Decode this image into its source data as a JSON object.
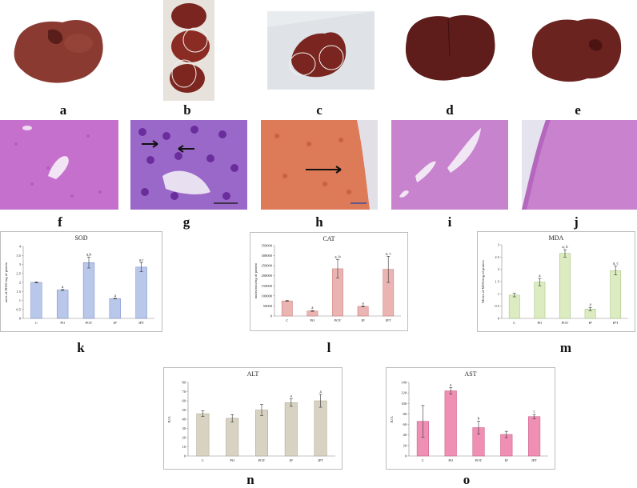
{
  "figure": {
    "panel_labels": [
      "a",
      "b",
      "c",
      "d",
      "e",
      "f",
      "g",
      "h",
      "i",
      "j",
      "k",
      "l",
      "m",
      "n",
      "o"
    ],
    "accents": {
      "liver": "#7a2a24",
      "he_stain": "#c46bc9",
      "sod_bar": "#b9c8ea",
      "cat_bar": "#eab4b2",
      "mda_bar": "#dcebc0",
      "alt_bar": "#d7d2c2",
      "ast_bar": "#ef8fb4"
    }
  },
  "chart_data": [
    {
      "type": "bar",
      "title": "SOD",
      "ylabel": "units of SOD/ mg of protein",
      "categories": [
        "C",
        "PO",
        "POT",
        "IP",
        "IPT"
      ],
      "values": [
        2.0,
        1.58,
        3.1,
        1.1,
        2.85
      ],
      "errors": [
        0.03,
        0.03,
        0.3,
        0.02,
        0.25
      ],
      "sig": [
        "",
        "a",
        "a,b",
        "a",
        "a,c"
      ],
      "ylim": [
        0,
        4
      ],
      "yticks": [
        "0",
        "0.5",
        "1",
        "1.5",
        "2",
        "2.5",
        "3",
        "3.5",
        "4"
      ]
    },
    {
      "type": "bar",
      "title": "CAT",
      "ylabel": "moles/min/mg of protein",
      "categories": [
        "C",
        "PO",
        "POT",
        "IP",
        "IPT"
      ],
      "values": [
        75000,
        25000,
        235000,
        48000,
        232000
      ],
      "errors": [
        2000,
        2000,
        45000,
        2000,
        65000
      ],
      "sig": [
        "",
        "a",
        "a, b",
        "a",
        "a, c"
      ],
      "ylim": [
        0,
        350000
      ],
      "yticks": [
        "0",
        "50000",
        "100000",
        "150000",
        "200000",
        "250000",
        "300000",
        "350000"
      ]
    },
    {
      "type": "bar",
      "title": "MDA",
      "ylabel": "Moles of MDA/mg of protein",
      "categories": [
        "C",
        "PO",
        "POT",
        "IP",
        "IPT"
      ],
      "values": [
        0.95,
        1.48,
        2.65,
        0.38,
        1.95
      ],
      "errors": [
        0.07,
        0.15,
        0.15,
        0.07,
        0.18
      ],
      "sig": [
        "",
        "a",
        "a, b",
        "a",
        "a, c"
      ],
      "ylim": [
        0,
        3
      ],
      "yticks": [
        "0",
        "0.5",
        "1",
        "1.5",
        "2",
        "2.5",
        "3"
      ]
    },
    {
      "type": "bar",
      "title": "ALT",
      "ylabel": "IU/L",
      "categories": [
        "C",
        "PO",
        "POT",
        "IP",
        "IPT"
      ],
      "values": [
        46,
        41,
        50,
        58,
        60
      ],
      "errors": [
        3,
        4,
        6,
        4,
        7
      ],
      "sig": [
        "",
        "",
        "",
        "a",
        "a"
      ],
      "ylim": [
        0,
        80
      ],
      "yticks": [
        "0",
        "10",
        "20",
        "30",
        "40",
        "50",
        "60",
        "70",
        "80"
      ]
    },
    {
      "type": "bar",
      "title": "AST",
      "ylabel": "IU/L",
      "categories": [
        "C",
        "PO",
        "POT",
        "IP",
        "IPT"
      ],
      "values": [
        66,
        124,
        54,
        41,
        75
      ],
      "errors": [
        30,
        6,
        12,
        6,
        4
      ],
      "sig": [
        "",
        "a",
        "b",
        "",
        "c"
      ],
      "ylim": [
        0,
        140
      ],
      "yticks": [
        "0",
        "20",
        "40",
        "60",
        "80",
        "100",
        "120",
        "140"
      ]
    }
  ]
}
